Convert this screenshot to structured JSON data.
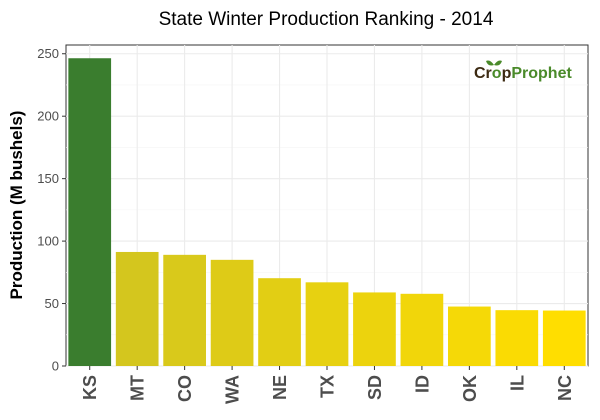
{
  "chart_data": {
    "type": "bar",
    "title": "State Winter  Production Ranking - 2014",
    "xlabel": "",
    "ylabel": "Production (M bushels)",
    "categories": [
      "KS",
      "MT",
      "CO",
      "WA",
      "NE",
      "TX",
      "SD",
      "ID",
      "OK",
      "IL",
      "NC"
    ],
    "values": [
      246.4,
      91.3,
      89.0,
      85.0,
      70.3,
      67.0,
      58.9,
      57.8,
      47.6,
      44.7,
      44.4
    ],
    "ylim": [
      0,
      257
    ],
    "yticks": [
      0,
      50,
      100,
      150,
      200,
      250
    ],
    "ytick_labels": [
      "0",
      "50",
      "100",
      "150",
      "200",
      "250"
    ],
    "grid": true,
    "legend": "none",
    "colors": {
      "highlight": "#3a7d2e",
      "gradient_start": "#d4c61e",
      "gradient_end": "#ffde00",
      "grid_major": "#ebebeb",
      "grid_minor": "#f5f5f5",
      "axis_text": "#4d4d4d"
    }
  },
  "watermark": {
    "text_part1": "Cr",
    "text_icon": "o",
    "text_part2": "p",
    "text_part3": "Prophet"
  }
}
